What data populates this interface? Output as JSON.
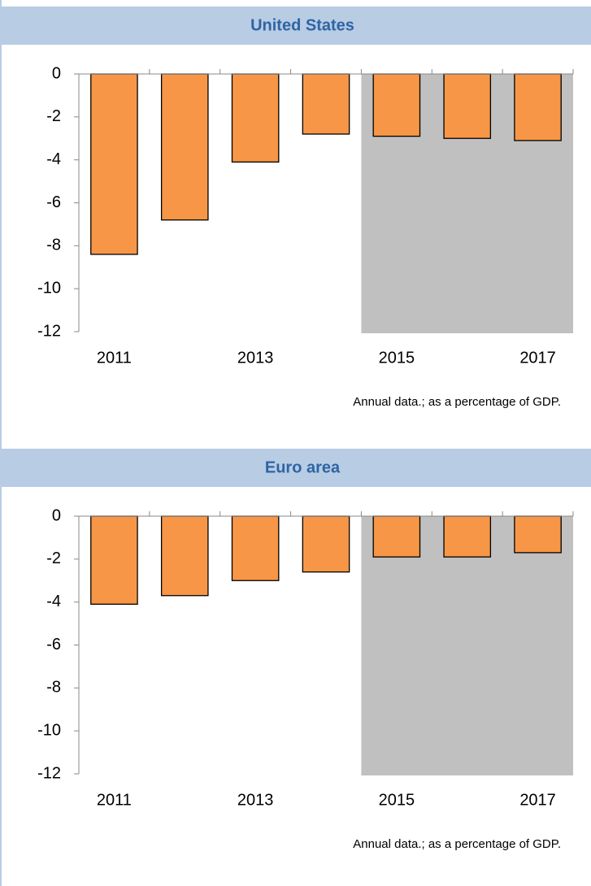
{
  "chart_data": [
    {
      "type": "bar",
      "title": "United States",
      "categories": [
        "2011",
        null,
        "2013",
        null,
        "2015",
        null,
        "2017"
      ],
      "values": [
        -8.4,
        -6.8,
        -4.1,
        -2.8,
        -2.9,
        -3.0,
        -3.1
      ],
      "color": "#f79646",
      "ylim": [
        -12,
        0
      ],
      "yticks": [
        0,
        -2,
        -4,
        -6,
        -8,
        -10,
        -12
      ],
      "shade_start_index": 4,
      "shade_color": "#c0c0c0",
      "note": "Annual data.; as a percentage of GDP."
    },
    {
      "type": "bar",
      "title": "Euro area",
      "categories": [
        "2011",
        null,
        "2013",
        null,
        "2015",
        null,
        "2017"
      ],
      "values": [
        -4.1,
        -3.7,
        -3.0,
        -2.6,
        -1.9,
        -1.9,
        -1.7
      ],
      "color": "#f79646",
      "ylim": [
        -12,
        0
      ],
      "yticks": [
        0,
        -2,
        -4,
        -6,
        -8,
        -10,
        -12
      ],
      "shade_start_index": 4,
      "shade_color": "#c0c0c0",
      "note": "Annual data.; as a percentage of GDP."
    }
  ]
}
